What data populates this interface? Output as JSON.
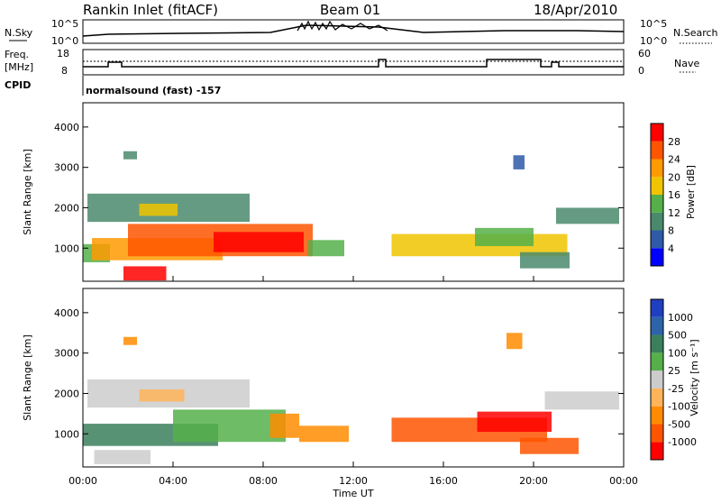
{
  "header": {
    "station": "Rankin Inlet (fitACF)",
    "beam": "Beam 01",
    "date": "18/Apr/2010"
  },
  "nsky_panel": {
    "left_label": "N.Sky",
    "right_label": "N.Search",
    "ticks_left": [
      "10^5",
      "10^0"
    ],
    "ticks_right": [
      "10^5",
      "10^0"
    ]
  },
  "freq_panel": {
    "left_label_1": "Freq.",
    "left_label_2": "[MHz]",
    "right_label": "Nave",
    "ticks_left": [
      "18",
      "8"
    ],
    "ticks_right": [
      "60",
      "0"
    ]
  },
  "cpid": {
    "label": "CPID",
    "value": "normalsound (fast) -157"
  },
  "colors": {
    "power": [
      "#0000ff",
      "#2e5aa8",
      "#4a8a6c",
      "#55b04a",
      "#f0c400",
      "#ff9a00",
      "#ff5500",
      "#ff0000"
    ],
    "velocity": [
      "#ff0000",
      "#ff5500",
      "#ff8c00",
      "#ffb45a",
      "#cccccc",
      "#55b04a",
      "#3b7f5c",
      "#2d63a8",
      "#1f3fc0"
    ]
  },
  "chart_data": [
    {
      "type": "heatmap",
      "panel": "power",
      "xlabel": "",
      "ylabel": "Slant Range [km]",
      "colorbar_label": "Power [dB]",
      "colorbar_ticks": [
        "4",
        "8",
        "12",
        "16",
        "20",
        "24",
        "28"
      ],
      "x_ticks": [
        "00:00",
        "04:00",
        "08:00",
        "12:00",
        "16:00",
        "20:00",
        "00:00"
      ],
      "y_ticks": [
        "1000",
        "2000",
        "3000",
        "4000"
      ],
      "xlim": [
        0,
        24
      ],
      "ylim": [
        180,
        4600
      ],
      "bands": [
        {
          "t0": 0.0,
          "t1": 1.2,
          "r0": 650,
          "r1": 1100,
          "v": 3
        },
        {
          "t0": 0.4,
          "t1": 6.2,
          "r0": 700,
          "r1": 1250,
          "v": 5
        },
        {
          "t0": 2.0,
          "t1": 10.2,
          "r0": 800,
          "r1": 1600,
          "v": 6
        },
        {
          "t0": 5.8,
          "t1": 9.8,
          "r0": 900,
          "r1": 1400,
          "v": 7
        },
        {
          "t0": 1.8,
          "t1": 3.7,
          "r0": 200,
          "r1": 550,
          "v": 7
        },
        {
          "t0": 0.2,
          "t1": 7.4,
          "r0": 1650,
          "r1": 2350,
          "v": 2
        },
        {
          "t0": 2.5,
          "t1": 4.2,
          "r0": 1800,
          "r1": 2100,
          "v": 4
        },
        {
          "t0": 10.0,
          "t1": 11.6,
          "r0": 800,
          "r1": 1200,
          "v": 3
        },
        {
          "t0": 13.7,
          "t1": 21.5,
          "r0": 800,
          "r1": 1350,
          "v": 4
        },
        {
          "t0": 17.4,
          "t1": 20.0,
          "r0": 1050,
          "r1": 1500,
          "v": 3
        },
        {
          "t0": 19.4,
          "t1": 21.6,
          "r0": 500,
          "r1": 900,
          "v": 2
        },
        {
          "t0": 21.0,
          "t1": 23.8,
          "r0": 1600,
          "r1": 2000,
          "v": 2
        },
        {
          "t0": 19.1,
          "t1": 19.6,
          "r0": 2950,
          "r1": 3300,
          "v": 1
        },
        {
          "t0": 1.8,
          "t1": 2.4,
          "r0": 3200,
          "r1": 3400,
          "v": 2
        }
      ]
    },
    {
      "type": "heatmap",
      "panel": "velocity",
      "xlabel": "Time UT",
      "ylabel": "Slant Range [km]",
      "colorbar_label": "Velocity [m s⁻¹]",
      "colorbar_ticks": [
        "-1000",
        "-500",
        "-100",
        "-25",
        "25",
        "100",
        "500",
        "1000"
      ],
      "x_ticks": [
        "00:00",
        "04:00",
        "08:00",
        "12:00",
        "16:00",
        "20:00",
        "00:00"
      ],
      "y_ticks": [
        "1000",
        "2000",
        "3000",
        "4000"
      ],
      "xlim": [
        0,
        24
      ],
      "ylim": [
        180,
        4600
      ],
      "bands": [
        {
          "t0": 0.2,
          "t1": 7.4,
          "r0": 1650,
          "r1": 2350,
          "v": 4
        },
        {
          "t0": 2.5,
          "t1": 4.5,
          "r0": 1800,
          "r1": 2100,
          "v": 3
        },
        {
          "t0": 0.0,
          "t1": 6.0,
          "r0": 700,
          "r1": 1250,
          "v": 6
        },
        {
          "t0": 4.0,
          "t1": 9.0,
          "r0": 800,
          "r1": 1600,
          "v": 5
        },
        {
          "t0": 8.3,
          "t1": 9.6,
          "r0": 900,
          "r1": 1500,
          "v": 2
        },
        {
          "t0": 9.6,
          "t1": 11.8,
          "r0": 800,
          "r1": 1200,
          "v": 2
        },
        {
          "t0": 13.7,
          "t1": 20.6,
          "r0": 800,
          "r1": 1400,
          "v": 1
        },
        {
          "t0": 17.5,
          "t1": 20.8,
          "r0": 1050,
          "r1": 1550,
          "v": 0
        },
        {
          "t0": 19.4,
          "t1": 22.0,
          "r0": 500,
          "r1": 900,
          "v": 1
        },
        {
          "t0": 20.5,
          "t1": 23.8,
          "r0": 1600,
          "r1": 2050,
          "v": 4
        },
        {
          "t0": 18.8,
          "t1": 19.5,
          "r0": 3100,
          "r1": 3500,
          "v": 2
        },
        {
          "t0": 1.8,
          "t1": 2.4,
          "r0": 3200,
          "r1": 3400,
          "v": 2
        },
        {
          "t0": 0.5,
          "t1": 3.0,
          "r0": 250,
          "r1": 600,
          "v": 4
        }
      ]
    }
  ]
}
